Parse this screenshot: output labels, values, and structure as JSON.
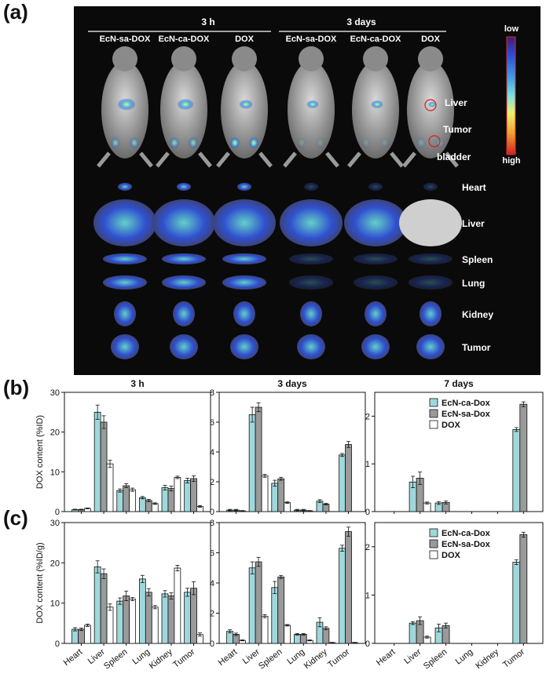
{
  "panels": {
    "a": "(a)",
    "b": "(b)",
    "c": "(c)"
  },
  "imaging": {
    "group_3h": "3 h",
    "group_3d": "3 days",
    "columns": [
      "EcN-sa-DOX",
      "EcN-ca-DOX",
      "DOX",
      "EcN-sa-DOX",
      "EcN-ca-DOX",
      "DOX"
    ],
    "scale_low": "low",
    "scale_high": "high",
    "mouse_labels": [
      "Liver",
      "Tumor",
      "bladder"
    ],
    "organ_labels": [
      "Heart",
      "Liver",
      "Spleen",
      "Lung",
      "Kidney",
      "Tumor"
    ],
    "colors": {
      "background": "#0a0a0a",
      "scale": [
        "#4a1a6e",
        "#2a4bd8",
        "#3fa0e8",
        "#7fe0e0",
        "#f0f070",
        "#f0a030",
        "#d02020"
      ]
    }
  },
  "legend": [
    "EcN-ca-Dox",
    "EcN-sa-Dox",
    "DOX"
  ],
  "series_colors": {
    "EcN-ca-Dox": "#9fd8dc",
    "EcN-sa-Dox": "#9a9a9a",
    "DOX": "#ffffff"
  },
  "chart_data": [
    {
      "type": "bar",
      "title": "3 h",
      "ylabel": "DOX content (%ID)",
      "ylim": [
        0,
        30
      ],
      "yticks": [
        0,
        10,
        20,
        30
      ],
      "categories": [
        "Heart",
        "Liver",
        "Spleen",
        "Lung",
        "Kidney",
        "Tumor"
      ],
      "series": [
        {
          "name": "EcN-ca-Dox",
          "values": [
            0.5,
            25.0,
            5.3,
            3.5,
            6.0,
            7.8
          ],
          "errors": [
            0.1,
            1.8,
            0.4,
            0.3,
            0.6,
            0.6
          ]
        },
        {
          "name": "EcN-sa-Dox",
          "values": [
            0.5,
            22.5,
            6.5,
            2.8,
            5.8,
            8.3
          ],
          "errors": [
            0.1,
            1.6,
            0.5,
            0.3,
            0.6,
            0.7
          ]
        },
        {
          "name": "DOX",
          "values": [
            0.8,
            12.0,
            5.5,
            2.0,
            8.6,
            1.3
          ],
          "errors": [
            0.1,
            0.9,
            0.4,
            0.2,
            0.3,
            0.2
          ]
        }
      ]
    },
    {
      "type": "bar",
      "title": "3 days",
      "ylabel": "",
      "ylim": [
        0,
        8
      ],
      "yticks": [
        0,
        2,
        4,
        6,
        8
      ],
      "categories": [
        "Heart",
        "Liver",
        "Spleen",
        "Lung",
        "Kidney",
        "Tumor"
      ],
      "series": [
        {
          "name": "EcN-ca-Dox",
          "values": [
            0.1,
            6.5,
            1.9,
            0.1,
            0.7,
            3.8
          ],
          "errors": [
            0.05,
            0.5,
            0.2,
            0.05,
            0.1,
            0.1
          ]
        },
        {
          "name": "EcN-sa-Dox",
          "values": [
            0.1,
            7.0,
            2.2,
            0.1,
            0.5,
            4.5
          ],
          "errors": [
            0.05,
            0.3,
            0.1,
            0.05,
            0.05,
            0.2
          ]
        },
        {
          "name": "DOX",
          "values": [
            0.05,
            2.4,
            0.6,
            0.05,
            0.0,
            0.0
          ],
          "errors": [
            0.02,
            0.1,
            0.05,
            0.02,
            0.0,
            0.0
          ]
        }
      ]
    },
    {
      "type": "bar",
      "title": "7 days",
      "ylabel": "",
      "ylim": [
        0,
        2.5
      ],
      "yticks": [
        0,
        1,
        2
      ],
      "categories": [
        "Heart",
        "Liver",
        "Spleen",
        "Lung",
        "Kidney",
        "Tumor"
      ],
      "series": [
        {
          "name": "EcN-ca-Dox",
          "values": [
            0,
            0.62,
            0.18,
            0,
            0,
            1.72
          ],
          "errors": [
            0,
            0.12,
            0.03,
            0,
            0,
            0.04
          ]
        },
        {
          "name": "EcN-sa-Dox",
          "values": [
            0,
            0.7,
            0.19,
            0,
            0,
            2.25
          ],
          "errors": [
            0,
            0.13,
            0.03,
            0,
            0,
            0.05
          ]
        },
        {
          "name": "DOX",
          "values": [
            0,
            0.18,
            0,
            0,
            0,
            0
          ],
          "errors": [
            0,
            0.02,
            0,
            0,
            0,
            0
          ]
        }
      ]
    },
    {
      "type": "bar",
      "title": "",
      "ylabel": "DOX content (%ID/g)",
      "ylim": [
        0,
        30
      ],
      "yticks": [
        0,
        10,
        20,
        30
      ],
      "categories": [
        "Heart",
        "Liver",
        "Spleen",
        "Lung",
        "Kidney",
        "Tumor"
      ],
      "series": [
        {
          "name": "EcN-ca-Dox",
          "values": [
            3.5,
            19.0,
            10.5,
            16.0,
            12.3,
            12.7
          ],
          "errors": [
            0.4,
            1.5,
            0.8,
            0.9,
            0.8,
            1.0
          ]
        },
        {
          "name": "EcN-sa-Dox",
          "values": [
            3.5,
            17.3,
            11.8,
            12.7,
            11.8,
            13.7
          ],
          "errors": [
            0.3,
            1.2,
            1.2,
            0.9,
            0.8,
            1.6
          ]
        },
        {
          "name": "DOX",
          "values": [
            4.5,
            9.0,
            11.0,
            9.0,
            18.7,
            2.2
          ],
          "errors": [
            0.3,
            0.8,
            0.4,
            0.4,
            0.7,
            0.4
          ]
        }
      ]
    },
    {
      "type": "bar",
      "title": "",
      "ylabel": "",
      "ylim": [
        0,
        8
      ],
      "yticks": [
        0,
        2,
        4,
        6,
        8
      ],
      "categories": [
        "Heart",
        "Liver",
        "Spleen",
        "Lung",
        "Kidney",
        "Tumor"
      ],
      "series": [
        {
          "name": "EcN-ca-Dox",
          "values": [
            0.8,
            5.0,
            3.7,
            0.6,
            1.4,
            6.3
          ],
          "errors": [
            0.1,
            0.4,
            0.4,
            0.05,
            0.3,
            0.2
          ]
        },
        {
          "name": "EcN-sa-Dox",
          "values": [
            0.6,
            5.4,
            4.4,
            0.6,
            1.0,
            7.4
          ],
          "errors": [
            0.08,
            0.3,
            0.1,
            0.05,
            0.1,
            0.3
          ]
        },
        {
          "name": "DOX",
          "values": [
            0.2,
            1.8,
            1.2,
            0.2,
            0.05,
            0.05
          ],
          "errors": [
            0.03,
            0.1,
            0.05,
            0.03,
            0.02,
            0.02
          ]
        }
      ]
    },
    {
      "type": "bar",
      "title": "",
      "ylabel": "",
      "ylim": [
        0,
        2.5
      ],
      "yticks": [
        0,
        1,
        2
      ],
      "categories": [
        "Heart",
        "Liver",
        "Spleen",
        "Lung",
        "Kidney",
        "Tumor"
      ],
      "series": [
        {
          "name": "EcN-ca-Dox",
          "values": [
            0,
            0.42,
            0.32,
            0,
            0,
            1.68
          ],
          "errors": [
            0,
            0.03,
            0.08,
            0,
            0,
            0.05
          ]
        },
        {
          "name": "EcN-sa-Dox",
          "values": [
            0,
            0.47,
            0.37,
            0,
            0,
            2.25
          ],
          "errors": [
            0,
            0.08,
            0.05,
            0,
            0,
            0.05
          ]
        },
        {
          "name": "DOX",
          "values": [
            0,
            0.13,
            0,
            0,
            0,
            0
          ],
          "errors": [
            0,
            0.02,
            0,
            0,
            0,
            0
          ]
        }
      ]
    }
  ]
}
